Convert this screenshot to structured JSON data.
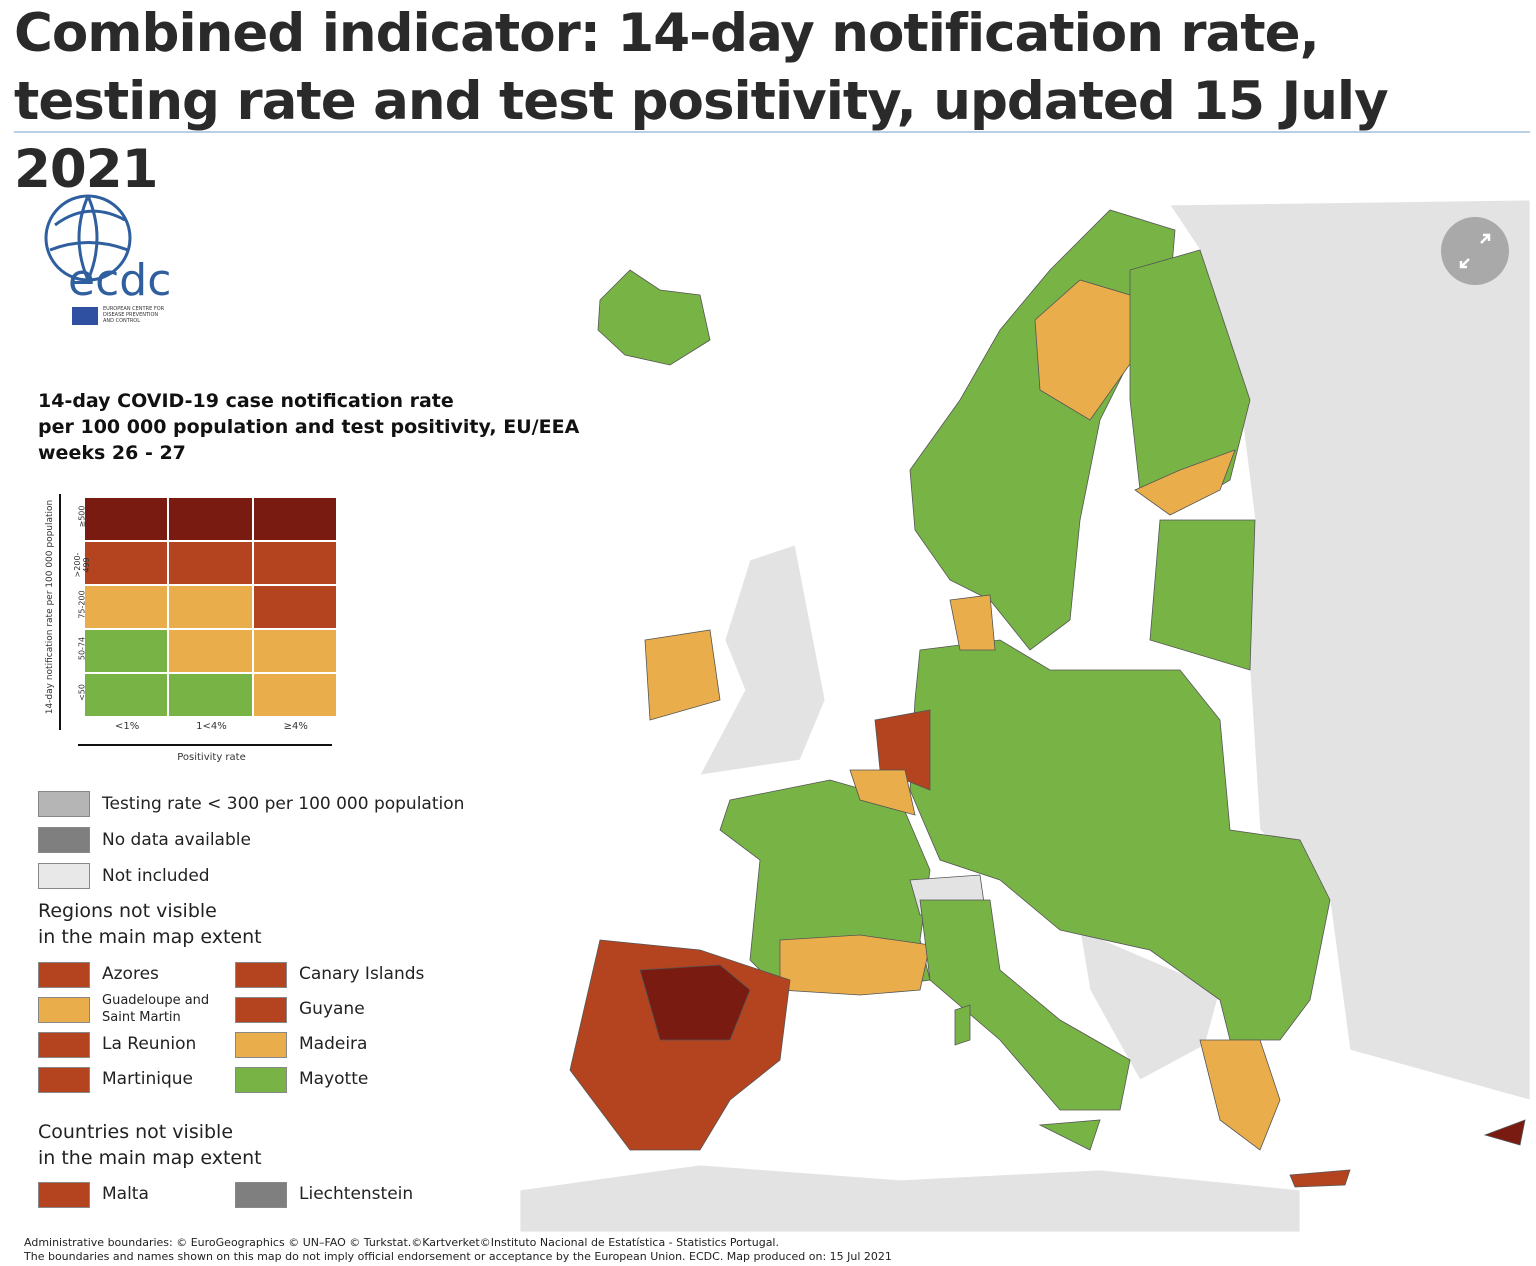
{
  "header": {
    "title": "Combined indicator: 14-day notification rate, testing rate and test positivity, updated 15 July 2021"
  },
  "logo": {
    "name": "ecdc",
    "subtitle": [
      "EUROPEAN CENTRE FOR",
      "DISEASE PREVENTION",
      "AND CONTROL"
    ]
  },
  "legend": {
    "title": [
      "14-day COVID-19 case notification rate",
      "per 100 000 population and test positivity, EU/EEA",
      "weeks 26 - 27"
    ],
    "y_axis_label": "14-day notification rate per 100 000 population",
    "rows": [
      "≥500",
      ">200-499",
      "75-200",
      "50-74",
      "<50"
    ],
    "columns": [
      "<1%",
      "1<4%",
      "≥4%"
    ],
    "x_axis_label": "Positivity rate",
    "matrix": [
      [
        "#7a1b12",
        "#7a1b12",
        "#7a1b12"
      ],
      [
        "#b3441f",
        "#b3441f",
        "#b3441f"
      ],
      [
        "#e9ae4b",
        "#e9ae4b",
        "#b3441f"
      ],
      [
        "#78b445",
        "#e9ae4b",
        "#e9ae4b"
      ],
      [
        "#78b445",
        "#78b445",
        "#e9ae4b"
      ]
    ],
    "other": [
      {
        "label": "Testing rate < 300 per 100 000 population",
        "color": "#b5b5b5"
      },
      {
        "label": "No data available",
        "color": "#7f7f7f"
      },
      {
        "label": "Not included",
        "color": "#e8e8e8"
      }
    ],
    "regions_heading": [
      "Regions not visible",
      "in the main map extent"
    ],
    "regions": [
      {
        "label": "Azores",
        "color": "#b3441f"
      },
      {
        "label": "Guadeloupe and Saint Martin",
        "color": "#e9ae4b"
      },
      {
        "label": "La Reunion",
        "color": "#b3441f"
      },
      {
        "label": "Martinique",
        "color": "#b3441f"
      },
      {
        "label": "Canary Islands",
        "color": "#b3441f"
      },
      {
        "label": "Guyane",
        "color": "#b3441f"
      },
      {
        "label": "Madeira",
        "color": "#e9ae4b"
      },
      {
        "label": "Mayotte",
        "color": "#78b445"
      }
    ],
    "countries_heading": [
      "Countries not visible",
      "in the main map extent"
    ],
    "countries": [
      {
        "label": "Malta",
        "color": "#b3441f"
      },
      {
        "label": "Liechtenstein",
        "color": "#7f7f7f"
      }
    ]
  },
  "footer": [
    "Administrative boundaries: © EuroGeographics © UN–FAO © Turkstat.©Kartverket©Instituto Nacional de Estatística - Statistics Portugal.",
    "The boundaries and names shown on this map do not imply official endorsement or acceptance by the European Union. ECDC. Map produced on: 15 Jul 2021"
  ]
}
